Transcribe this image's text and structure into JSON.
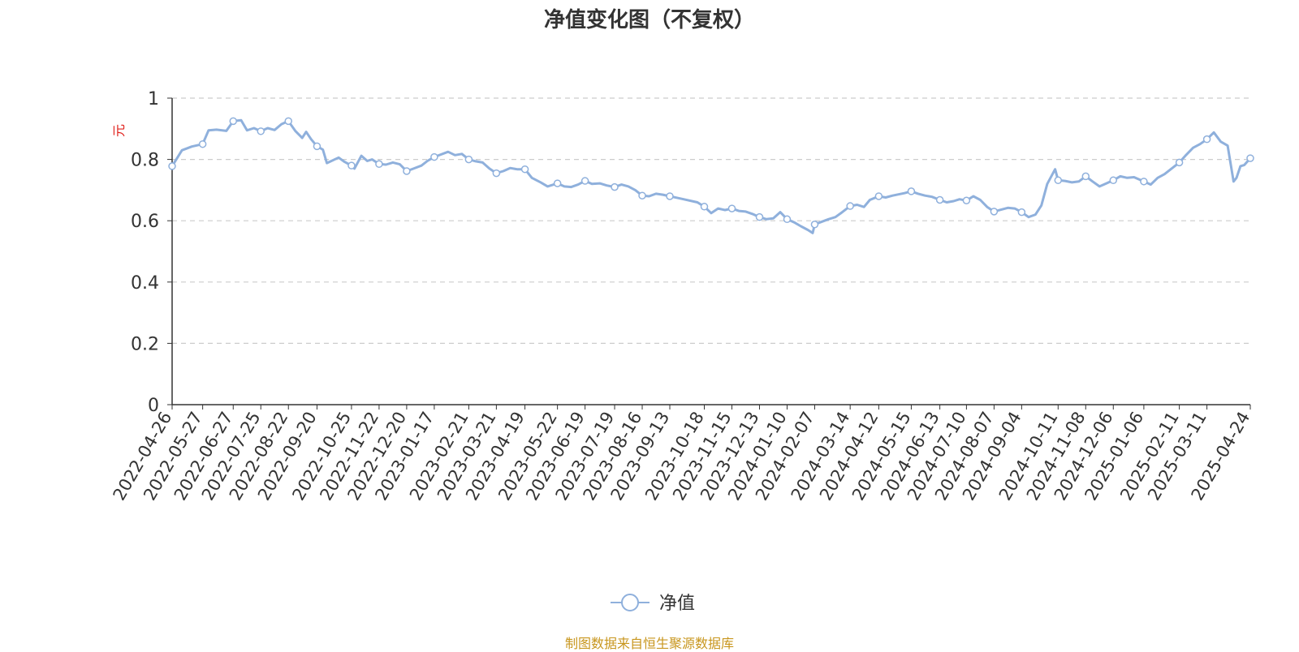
{
  "page": {
    "title": "净值变化图（不复权）",
    "source_note": "制图数据来自恒生聚源数据库",
    "source_color": "#c8961e"
  },
  "chart_data": {
    "type": "line",
    "title": "净值变化图（不复权）",
    "ylabel": "元",
    "ylabel_color": "#e0201b",
    "ylim": [
      0,
      1
    ],
    "yticks": [
      0,
      0.2,
      0.4,
      0.6,
      0.8,
      1
    ],
    "grid": true,
    "legend_position": "bottom-center",
    "x_tick_labels": [
      "2022-04-26",
      "2022-05-27",
      "2022-06-27",
      "2022-07-25",
      "2022-08-22",
      "2022-09-20",
      "2022-10-25",
      "2022-11-22",
      "2022-12-20",
      "2023-01-17",
      "2023-02-21",
      "2023-03-21",
      "2023-04-19",
      "2023-05-22",
      "2023-06-19",
      "2023-07-19",
      "2023-08-16",
      "2023-09-13",
      "2023-10-18",
      "2023-11-15",
      "2023-12-13",
      "2024-01-10",
      "2024-02-07",
      "2024-03-14",
      "2024-04-12",
      "2024-05-15",
      "2024-06-13",
      "2024-07-10",
      "2024-08-07",
      "2024-09-04",
      "2024-10-11",
      "2024-11-08",
      "2024-12-06",
      "2025-01-06",
      "2025-02-11",
      "2025-03-11",
      "2025-04-24"
    ],
    "series": [
      {
        "name": "净值",
        "color": "#8fb0dc",
        "points": [
          [
            "2022-04-26",
            0.778
          ],
          [
            "2022-05-06",
            0.83
          ],
          [
            "2022-05-16",
            0.842
          ],
          [
            "2022-05-27",
            0.85
          ],
          [
            "2022-06-02",
            0.895
          ],
          [
            "2022-06-10",
            0.897
          ],
          [
            "2022-06-20",
            0.893
          ],
          [
            "2022-06-27",
            0.925
          ],
          [
            "2022-07-05",
            0.928
          ],
          [
            "2022-07-11",
            0.895
          ],
          [
            "2022-07-18",
            0.902
          ],
          [
            "2022-07-25",
            0.892
          ],
          [
            "2022-08-01",
            0.902
          ],
          [
            "2022-08-08",
            0.896
          ],
          [
            "2022-08-15",
            0.915
          ],
          [
            "2022-08-22",
            0.925
          ],
          [
            "2022-08-29",
            0.893
          ],
          [
            "2022-09-05",
            0.87
          ],
          [
            "2022-09-09",
            0.89
          ],
          [
            "2022-09-14",
            0.866
          ],
          [
            "2022-09-20",
            0.843
          ],
          [
            "2022-09-26",
            0.832
          ],
          [
            "2022-09-30",
            0.788
          ],
          [
            "2022-10-12",
            0.806
          ],
          [
            "2022-10-18",
            0.792
          ],
          [
            "2022-10-25",
            0.78
          ],
          [
            "2022-10-28",
            0.77
          ],
          [
            "2022-11-04",
            0.812
          ],
          [
            "2022-11-10",
            0.795
          ],
          [
            "2022-11-15",
            0.8
          ],
          [
            "2022-11-22",
            0.785
          ],
          [
            "2022-11-29",
            0.783
          ],
          [
            "2022-12-06",
            0.79
          ],
          [
            "2022-12-13",
            0.784
          ],
          [
            "2022-12-20",
            0.762
          ],
          [
            "2022-12-27",
            0.77
          ],
          [
            "2023-01-04",
            0.78
          ],
          [
            "2023-01-10",
            0.795
          ],
          [
            "2023-01-17",
            0.808
          ],
          [
            "2023-01-31",
            0.825
          ],
          [
            "2023-02-07",
            0.814
          ],
          [
            "2023-02-14",
            0.818
          ],
          [
            "2023-02-21",
            0.8
          ],
          [
            "2023-02-28",
            0.794
          ],
          [
            "2023-03-07",
            0.79
          ],
          [
            "2023-03-14",
            0.77
          ],
          [
            "2023-03-21",
            0.755
          ],
          [
            "2023-03-28",
            0.762
          ],
          [
            "2023-04-04",
            0.772
          ],
          [
            "2023-04-11",
            0.768
          ],
          [
            "2023-04-19",
            0.768
          ],
          [
            "2023-04-26",
            0.74
          ],
          [
            "2023-05-05",
            0.725
          ],
          [
            "2023-05-12",
            0.712
          ],
          [
            "2023-05-22",
            0.722
          ],
          [
            "2023-05-29",
            0.712
          ],
          [
            "2023-06-05",
            0.71
          ],
          [
            "2023-06-12",
            0.718
          ],
          [
            "2023-06-19",
            0.73
          ],
          [
            "2023-06-26",
            0.72
          ],
          [
            "2023-07-04",
            0.722
          ],
          [
            "2023-07-11",
            0.715
          ],
          [
            "2023-07-19",
            0.71
          ],
          [
            "2023-07-26",
            0.718
          ],
          [
            "2023-08-02",
            0.712
          ],
          [
            "2023-08-09",
            0.7
          ],
          [
            "2023-08-16",
            0.682
          ],
          [
            "2023-08-23",
            0.68
          ],
          [
            "2023-08-30",
            0.688
          ],
          [
            "2023-09-06",
            0.685
          ],
          [
            "2023-09-13",
            0.68
          ],
          [
            "2023-09-20",
            0.675
          ],
          [
            "2023-09-27",
            0.67
          ],
          [
            "2023-10-11",
            0.66
          ],
          [
            "2023-10-18",
            0.646
          ],
          [
            "2023-10-25",
            0.625
          ],
          [
            "2023-11-01",
            0.64
          ],
          [
            "2023-11-08",
            0.635
          ],
          [
            "2023-11-15",
            0.64
          ],
          [
            "2023-11-22",
            0.632
          ],
          [
            "2023-11-29",
            0.63
          ],
          [
            "2023-12-06",
            0.622
          ],
          [
            "2023-12-13",
            0.612
          ],
          [
            "2023-12-20",
            0.605
          ],
          [
            "2023-12-27",
            0.608
          ],
          [
            "2024-01-03",
            0.628
          ],
          [
            "2024-01-10",
            0.605
          ],
          [
            "2024-01-17",
            0.595
          ],
          [
            "2024-01-24",
            0.582
          ],
          [
            "2024-01-31",
            0.57
          ],
          [
            "2024-02-05",
            0.56
          ],
          [
            "2024-02-07",
            0.588
          ],
          [
            "2024-02-21",
            0.605
          ],
          [
            "2024-02-28",
            0.612
          ],
          [
            "2024-03-06",
            0.628
          ],
          [
            "2024-03-14",
            0.648
          ],
          [
            "2024-03-21",
            0.652
          ],
          [
            "2024-03-28",
            0.645
          ],
          [
            "2024-04-03",
            0.668
          ],
          [
            "2024-04-12",
            0.68
          ],
          [
            "2024-04-19",
            0.676
          ],
          [
            "2024-04-26",
            0.682
          ],
          [
            "2024-05-08",
            0.69
          ],
          [
            "2024-05-15",
            0.696
          ],
          [
            "2024-05-22",
            0.688
          ],
          [
            "2024-05-29",
            0.682
          ],
          [
            "2024-06-05",
            0.678
          ],
          [
            "2024-06-13",
            0.668
          ],
          [
            "2024-06-20",
            0.66
          ],
          [
            "2024-06-27",
            0.664
          ],
          [
            "2024-07-03",
            0.67
          ],
          [
            "2024-07-10",
            0.666
          ],
          [
            "2024-07-17",
            0.68
          ],
          [
            "2024-07-24",
            0.668
          ],
          [
            "2024-07-31",
            0.645
          ],
          [
            "2024-08-07",
            0.63
          ],
          [
            "2024-08-14",
            0.636
          ],
          [
            "2024-08-21",
            0.642
          ],
          [
            "2024-08-28",
            0.64
          ],
          [
            "2024-09-04",
            0.628
          ],
          [
            "2024-09-11",
            0.612
          ],
          [
            "2024-09-18",
            0.62
          ],
          [
            "2024-09-24",
            0.65
          ],
          [
            "2024-09-30",
            0.72
          ],
          [
            "2024-10-08",
            0.768
          ],
          [
            "2024-10-11",
            0.732
          ],
          [
            "2024-10-18",
            0.73
          ],
          [
            "2024-10-25",
            0.725
          ],
          [
            "2024-11-01",
            0.728
          ],
          [
            "2024-11-08",
            0.745
          ],
          [
            "2024-11-15",
            0.728
          ],
          [
            "2024-11-22",
            0.712
          ],
          [
            "2024-11-29",
            0.722
          ],
          [
            "2024-12-06",
            0.732
          ],
          [
            "2024-12-13",
            0.745
          ],
          [
            "2024-12-20",
            0.74
          ],
          [
            "2024-12-27",
            0.742
          ],
          [
            "2025-01-06",
            0.728
          ],
          [
            "2025-01-13",
            0.718
          ],
          [
            "2025-01-20",
            0.74
          ],
          [
            "2025-01-27",
            0.752
          ],
          [
            "2025-02-11",
            0.79
          ],
          [
            "2025-02-18",
            0.815
          ],
          [
            "2025-02-25",
            0.838
          ],
          [
            "2025-03-04",
            0.85
          ],
          [
            "2025-03-11",
            0.866
          ],
          [
            "2025-03-18",
            0.888
          ],
          [
            "2025-03-25",
            0.858
          ],
          [
            "2025-04-01",
            0.845
          ],
          [
            "2025-04-07",
            0.728
          ],
          [
            "2025-04-10",
            0.74
          ],
          [
            "2025-04-14",
            0.778
          ],
          [
            "2025-04-18",
            0.782
          ],
          [
            "2025-04-24",
            0.804
          ]
        ]
      }
    ]
  }
}
